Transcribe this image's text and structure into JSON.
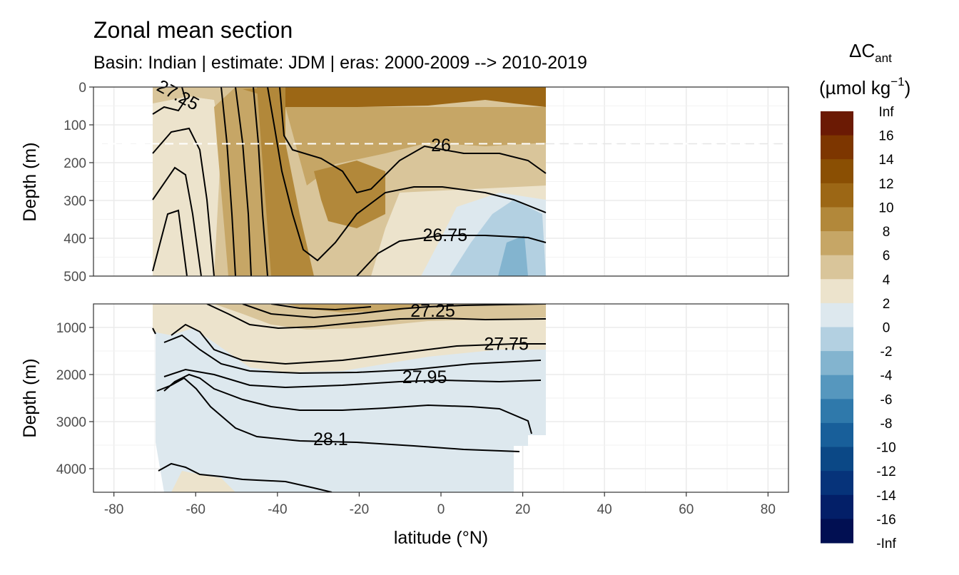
{
  "chart_data": {
    "type": "heatmap",
    "title": "Zonal mean section",
    "subtitle": "Basin: Indian | estimate: JDM  | eras: 2000-2009 --> 2010-2019",
    "xlabel": "latitude (°N)",
    "ylabel": "Depth (m)",
    "xlim": [
      -85,
      85
    ],
    "x_ticks": [
      -80,
      -60,
      -40,
      -20,
      0,
      20,
      40,
      60,
      80
    ],
    "data_lat_range": [
      -70,
      25
    ],
    "panels": [
      {
        "name": "upper",
        "ylim": [
          0,
          500
        ],
        "y_ticks": [
          0,
          100,
          200,
          300,
          400,
          500
        ],
        "reference_depth_line": 150
      },
      {
        "name": "lower",
        "ylim": [
          500,
          4500
        ],
        "y_ticks": [
          1000,
          2000,
          3000,
          4000
        ]
      }
    ],
    "legend": {
      "title_main": "ΔC",
      "title_sub": "ant",
      "unit_main": "(µmol kg",
      "unit_sup": "−1",
      "unit_close": ")",
      "position": "right",
      "labels": [
        "Inf",
        "16",
        "14",
        "12",
        "10",
        "8",
        "6",
        "4",
        "2",
        "0",
        "-2",
        "-4",
        "-6",
        "-8",
        "-10",
        "-12",
        "-14",
        "-16",
        "-Inf"
      ],
      "colors": [
        "#6b1a04",
        "#7d3600",
        "#8a4f03",
        "#9c6715",
        "#b2883a",
        "#c6a666",
        "#d9c59a",
        "#ece3cc",
        "#dde8ee",
        "#b3d0e1",
        "#83b4cf",
        "#5697be",
        "#2f79ab",
        "#185f9a",
        "#0b4886",
        "#06337a",
        "#031f68",
        "#010f52"
      ]
    },
    "contour_labels": [
      {
        "panel": "upper",
        "text": "27.25",
        "lat": -65,
        "depth": 35
      },
      {
        "panel": "upper",
        "text": "26",
        "lat": 0,
        "depth": 170
      },
      {
        "panel": "upper",
        "text": "26.75",
        "lat": 1,
        "depth": 408
      },
      {
        "panel": "lower",
        "text": "27.25",
        "lat": -2,
        "depth": 770
      },
      {
        "panel": "lower",
        "text": "27.75",
        "lat": 16,
        "depth": 1480
      },
      {
        "panel": "lower",
        "text": "27.95",
        "lat": -4,
        "depth": 2180
      },
      {
        "panel": "lower",
        "text": "28.1",
        "lat": -27,
        "depth": 3500
      }
    ]
  }
}
